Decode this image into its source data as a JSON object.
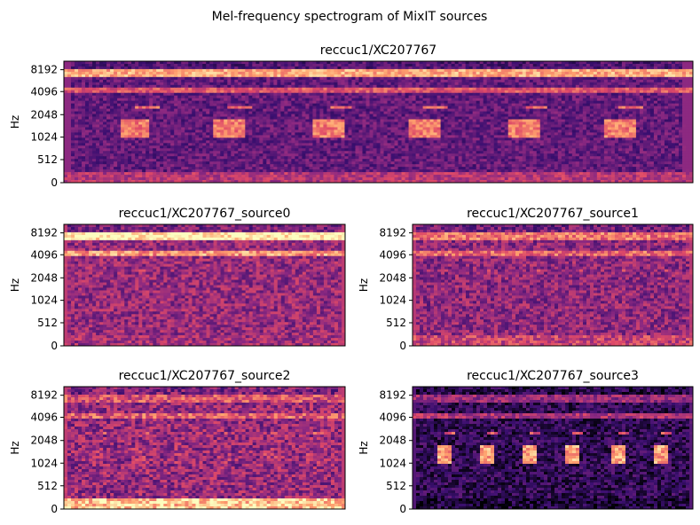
{
  "figure": {
    "suptitle": "Mel-frequency spectrogram of MixIT sources"
  },
  "colors": {
    "colormap": [
      "#000004",
      "#3b0f70",
      "#8c2981",
      "#de4968",
      "#fe9f6d",
      "#fcfdbf"
    ],
    "background": "#ffffff",
    "axis": "#000000"
  },
  "chart_data": [
    {
      "type": "heatmap",
      "colormap": "magma",
      "title": "reccuc1/XC207767",
      "ylabel": "Hz",
      "yticks": [
        "0",
        "512",
        "1024",
        "2048",
        "4096",
        "8192"
      ],
      "xticks": [],
      "features": {
        "background": 0.3,
        "calls": 0.72,
        "band_high": 0.82,
        "band_mid": 0.62,
        "low_freq": 0.5,
        "noise": 0.12
      }
    },
    {
      "type": "heatmap",
      "colormap": "magma",
      "title": "reccuc1/XC207767_source0",
      "ylabel": "Hz",
      "yticks": [
        "0",
        "512",
        "1024",
        "2048",
        "4096",
        "8192"
      ],
      "xticks": [],
      "features": {
        "background": 0.42,
        "calls": 0.3,
        "band_high": 0.98,
        "band_mid": 0.78,
        "low_freq": 0.45,
        "noise": 0.16
      }
    },
    {
      "type": "heatmap",
      "colormap": "magma",
      "title": "reccuc1/XC207767_source1",
      "ylabel": "Hz",
      "yticks": [
        "0",
        "512",
        "1024",
        "2048",
        "4096",
        "8192"
      ],
      "xticks": [],
      "features": {
        "background": 0.4,
        "calls": 0.34,
        "band_high": 0.7,
        "band_mid": 0.66,
        "low_freq": 0.55,
        "noise": 0.16
      }
    },
    {
      "type": "heatmap",
      "colormap": "magma",
      "title": "reccuc1/XC207767_source2",
      "ylabel": "Hz",
      "yticks": [
        "0",
        "512",
        "1024",
        "2048",
        "4096",
        "8192"
      ],
      "xticks": [],
      "features": {
        "background": 0.42,
        "calls": 0.48,
        "band_high": 0.6,
        "band_mid": 0.64,
        "low_freq": 0.88,
        "noise": 0.18
      }
    },
    {
      "type": "heatmap",
      "colormap": "magma",
      "title": "reccuc1/XC207767_source3",
      "ylabel": "Hz",
      "yticks": [
        "0",
        "512",
        "1024",
        "2048",
        "4096",
        "8192"
      ],
      "xticks": [],
      "features": {
        "background": 0.16,
        "calls": 0.8,
        "band_high": 0.42,
        "band_mid": 0.48,
        "low_freq": 0.1,
        "noise": 0.14
      }
    }
  ]
}
